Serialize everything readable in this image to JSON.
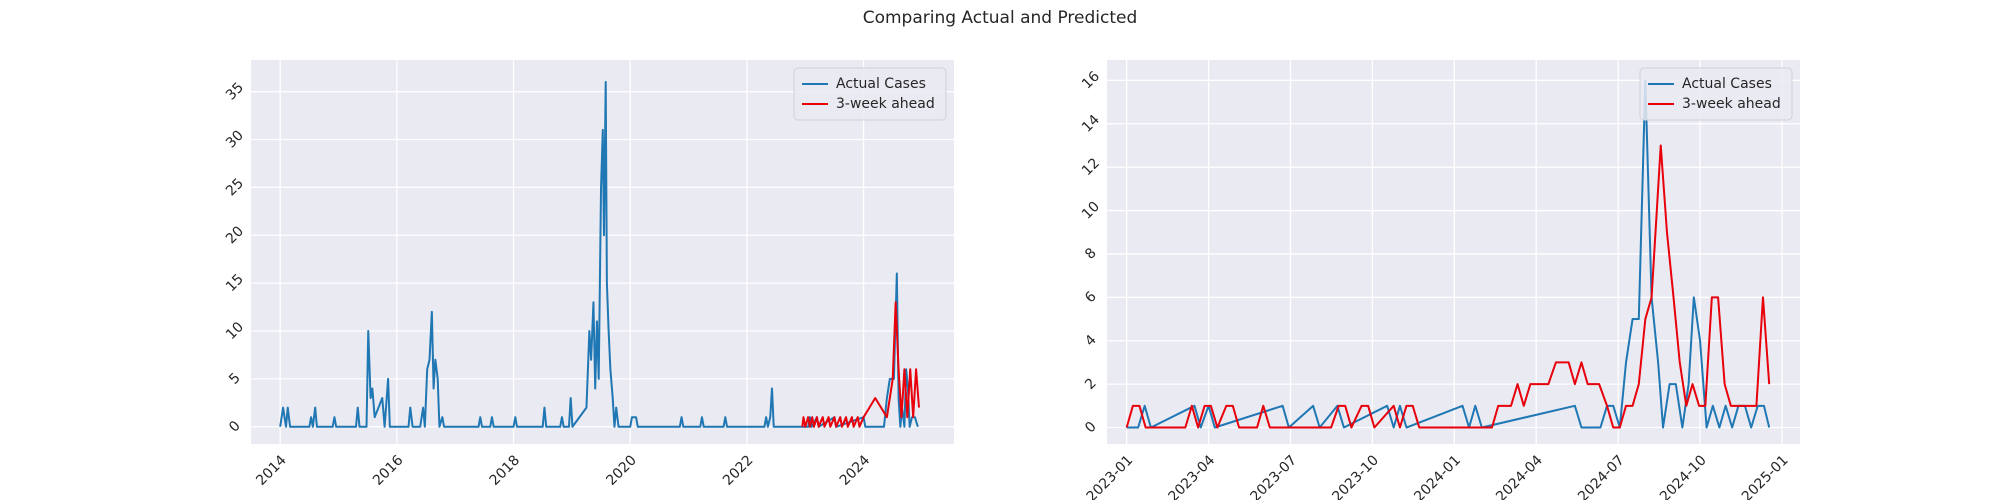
{
  "title": "Comparing Actual and Predicted",
  "chart_data": [
    {
      "type": "line",
      "legend": "upper right",
      "grid": true,
      "xlim": [
        2013.5,
        2025.55
      ],
      "ylim": [
        -1.8,
        38.3
      ],
      "xticks": [
        2014,
        2016,
        2018,
        2020,
        2022,
        2024
      ],
      "yticks": [
        0,
        5,
        10,
        15,
        20,
        25,
        30,
        35
      ],
      "series": [
        {
          "name": "Actual Cases",
          "color": "#1f77b4",
          "x": [
            2014.0,
            2014.05,
            2014.1,
            2014.13,
            2014.17,
            2014.5,
            2014.53,
            2014.56,
            2014.6,
            2014.63,
            2014.9,
            2014.93,
            2014.96,
            2015.3,
            2015.33,
            2015.36,
            2015.48,
            2015.51,
            2015.55,
            2015.58,
            2015.62,
            2015.75,
            2015.79,
            2015.85,
            2015.88,
            2016.2,
            2016.23,
            2016.27,
            2016.4,
            2016.45,
            2016.48,
            2016.52,
            2016.56,
            2016.6,
            2016.63,
            2016.66,
            2016.7,
            2016.73,
            2016.78,
            2016.81,
            2017.4,
            2017.43,
            2017.46,
            2017.6,
            2017.63,
            2017.66,
            2018.0,
            2018.03,
            2018.06,
            2018.5,
            2018.53,
            2018.56,
            2018.8,
            2018.83,
            2018.86,
            2018.95,
            2018.98,
            2019.01,
            2019.25,
            2019.3,
            2019.33,
            2019.37,
            2019.4,
            2019.43,
            2019.46,
            2019.5,
            2019.53,
            2019.55,
            2019.58,
            2019.6,
            2019.63,
            2019.66,
            2019.7,
            2019.73,
            2019.76,
            2019.8,
            2020.0,
            2020.03,
            2020.1,
            2020.13,
            2020.85,
            2020.88,
            2020.91,
            2021.2,
            2021.23,
            2021.26,
            2021.6,
            2021.63,
            2021.66,
            2022.3,
            2022.33,
            2022.36,
            2022.4,
            2022.43,
            2022.46,
            2023.05,
            2023.08,
            2023.11,
            2023.2,
            2023.23,
            2023.5,
            2023.53,
            2024.0,
            2024.03,
            2024.35,
            2024.4,
            2024.45,
            2024.52,
            2024.57,
            2024.6,
            2024.63,
            2024.66,
            2024.7,
            2024.73,
            2024.76,
            2024.79,
            2024.83,
            2024.88,
            2024.93
          ],
          "values": [
            0,
            2,
            0,
            2,
            0,
            0,
            1,
            0,
            2,
            0,
            0,
            1,
            0,
            0,
            2,
            0,
            0,
            10,
            3,
            4,
            1,
            3,
            0,
            5,
            0,
            0,
            2,
            0,
            0,
            2,
            0,
            6,
            7,
            12,
            4,
            7,
            5,
            0,
            1,
            0,
            0,
            1,
            0,
            0,
            1,
            0,
            0,
            1,
            0,
            0,
            2,
            0,
            0,
            1,
            0,
            0,
            3,
            0,
            2,
            10,
            7,
            13,
            4,
            11,
            5,
            25,
            31,
            20,
            36,
            15,
            10,
            6,
            3,
            0,
            2,
            0,
            0,
            1,
            1,
            0,
            0,
            1,
            0,
            0,
            1,
            0,
            0,
            1,
            0,
            0,
            1,
            0,
            1,
            4,
            0,
            0,
            1,
            0,
            1,
            0,
            1,
            0,
            1,
            0,
            0,
            3,
            5,
            5,
            16,
            3,
            0,
            2,
            0,
            6,
            4,
            0,
            1,
            1,
            0
          ]
        },
        {
          "name": "3-week ahead",
          "color": "#e8000b",
          "x": [
            2022.95,
            2022.97,
            2023.0,
            2023.05,
            2023.08,
            2023.12,
            2023.15,
            2023.2,
            2023.23,
            2023.3,
            2023.33,
            2023.4,
            2023.43,
            2023.5,
            2023.53,
            2023.6,
            2023.63,
            2023.7,
            2023.73,
            2023.8,
            2023.83,
            2023.9,
            2023.93,
            2024.0,
            2024.1,
            2024.2,
            2024.3,
            2024.4,
            2024.5,
            2024.55,
            2024.6,
            2024.65,
            2024.7,
            2024.75,
            2024.8,
            2024.85,
            2024.9,
            2024.95
          ],
          "values": [
            0,
            1,
            0,
            1,
            0,
            1,
            0,
            1,
            0,
            1,
            0,
            1,
            0,
            1,
            0,
            1,
            0,
            1,
            0,
            1,
            0,
            1,
            0,
            1,
            2,
            3,
            2,
            1,
            5,
            13,
            6,
            1,
            6,
            1,
            6,
            1,
            6,
            2
          ]
        }
      ]
    },
    {
      "type": "line",
      "legend": "upper right",
      "grid": true,
      "xlim": [
        2022.94,
        2025.055
      ],
      "ylim": [
        -0.76,
        16.94
      ],
      "xticks": [
        {
          "value": 2023,
          "label": "2023-01"
        },
        {
          "value": 2023.25,
          "label": "2023-04"
        },
        {
          "value": 2023.5,
          "label": "2023-07"
        },
        {
          "value": 2023.75,
          "label": "2023-10"
        },
        {
          "value": 2024,
          "label": "2024-01"
        },
        {
          "value": 2024.25,
          "label": "2024-04"
        },
        {
          "value": 2024.5,
          "label": "2024-07"
        },
        {
          "value": 2024.75,
          "label": "2024-10"
        },
        {
          "value": 2025,
          "label": "2025-01"
        }
      ],
      "yticks": [
        0,
        2,
        4,
        6,
        8,
        10,
        12,
        14,
        16
      ],
      "series": [
        {
          "name": "Actual Cases",
          "color": "#1f77b4",
          "x": [
            2023.0,
            2023.035,
            2023.055,
            2023.074,
            2023.207,
            2023.226,
            2023.25,
            2023.269,
            2023.476,
            2023.495,
            2023.569,
            2023.589,
            2023.643,
            2023.663,
            2023.795,
            2023.815,
            2023.834,
            2023.854,
            2024.025,
            2024.045,
            2024.064,
            2024.084,
            2024.368,
            2024.388,
            2024.446,
            2024.466,
            2024.485,
            2024.505,
            2024.524,
            2024.544,
            2024.563,
            2024.583,
            2024.602,
            2024.622,
            2024.637,
            2024.657,
            2024.676,
            2024.696,
            2024.715,
            2024.731,
            2024.75,
            2024.77,
            2024.789,
            2024.809,
            2024.828,
            2024.848,
            2024.867,
            2024.887,
            2024.906,
            2024.926,
            2024.945,
            2024.961
          ],
          "values": [
            0,
            0,
            1,
            0,
            1,
            0,
            1,
            0,
            1,
            0,
            1,
            0,
            1,
            0,
            1,
            0,
            1,
            0,
            1,
            0,
            1,
            0,
            1,
            0,
            0,
            1,
            1,
            0,
            3,
            5,
            5,
            16,
            6,
            3,
            0,
            2,
            2,
            0,
            2,
            6,
            4,
            0,
            1,
            0,
            1,
            0,
            1,
            1,
            0,
            1,
            1,
            0
          ]
        },
        {
          "name": "3-week ahead",
          "color": "#e8000b",
          "x": [
            2023.0,
            2023.019,
            2023.039,
            2023.058,
            2023.179,
            2023.199,
            2023.218,
            2023.238,
            2023.257,
            2023.277,
            2023.304,
            2023.324,
            2023.343,
            2023.398,
            2023.417,
            2023.437,
            2023.624,
            2023.647,
            2023.667,
            2023.686,
            2023.717,
            2023.737,
            2023.756,
            2023.815,
            2023.834,
            2023.854,
            2023.873,
            2023.893,
            2024.115,
            2024.134,
            2024.173,
            2024.193,
            2024.212,
            2024.232,
            2024.287,
            2024.31,
            2024.349,
            2024.368,
            2024.388,
            2024.407,
            2024.442,
            2024.466,
            2024.485,
            2024.505,
            2024.524,
            2024.544,
            2024.563,
            2024.583,
            2024.602,
            2024.63,
            2024.649,
            2024.669,
            2024.688,
            2024.708,
            2024.727,
            2024.747,
            2024.766,
            2024.786,
            2024.805,
            2024.825,
            2024.844,
            2024.903,
            2024.922,
            2024.942,
            2024.961
          ],
          "values": [
            0,
            1,
            1,
            0,
            0,
            1,
            0,
            1,
            1,
            0,
            1,
            1,
            0,
            0,
            1,
            0,
            0,
            1,
            1,
            0,
            1,
            1,
            0,
            1,
            0,
            1,
            1,
            0,
            0,
            1,
            1,
            2,
            1,
            2,
            2,
            3,
            3,
            2,
            3,
            2,
            2,
            1,
            0,
            0,
            1,
            1,
            2,
            5,
            6,
            13,
            9,
            6,
            3,
            1,
            2,
            1,
            1,
            6,
            6,
            2,
            1,
            1,
            1,
            6,
            2
          ]
        }
      ]
    }
  ]
}
